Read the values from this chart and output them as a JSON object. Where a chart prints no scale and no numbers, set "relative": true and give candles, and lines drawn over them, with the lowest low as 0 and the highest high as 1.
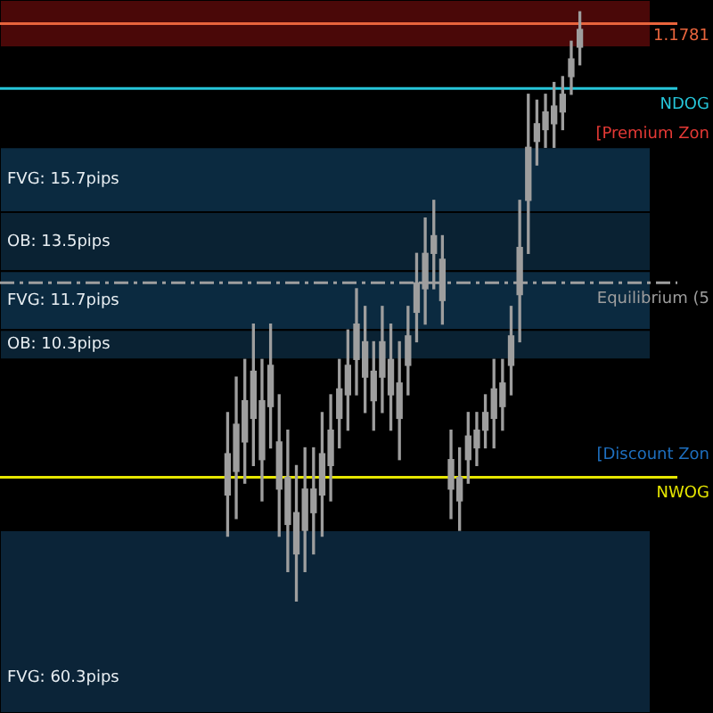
{
  "chart_data": {
    "type": "candlestick",
    "relative": true,
    "tick_labels": false,
    "legend": false,
    "categories": [
      null,
      null,
      null,
      null,
      null,
      null,
      null,
      null,
      null,
      null,
      null,
      null,
      null,
      null,
      null,
      null,
      null,
      null,
      null,
      null,
      null,
      null,
      null,
      null,
      null,
      null,
      null,
      null,
      null,
      null,
      null,
      null,
      null,
      null,
      null,
      null,
      null,
      null,
      null,
      null,
      null,
      null,
      null,
      null,
      null,
      null,
      null,
      null,
      null,
      null,
      null,
      null,
      null,
      null,
      null,
      null,
      null,
      null,
      null,
      null,
      null,
      null,
      null,
      null,
      null,
      null,
      null,
      null,
      null,
      null,
      null,
      null,
      null,
      null,
      null,
      null,
      null,
      null,
      null,
      null,
      null,
      null,
      null
    ],
    "series": [
      {
        "color": "#9e9e9e",
        "ohlc": [
          null,
          null,
          null,
          null,
          null,
          null,
          null,
          null,
          null,
          null,
          null,
          null,
          null,
          null,
          null,
          null,
          null,
          null,
          null,
          null,
          null,
          null,
          null,
          null,
          null,
          null,
          [
            0.18,
            0.32,
            0.11,
            0.25
          ],
          [
            0.22,
            0.38,
            0.14,
            0.3
          ],
          [
            0.27,
            0.41,
            0.2,
            0.34
          ],
          [
            0.31,
            0.47,
            0.23,
            0.39
          ],
          [
            0.24,
            0.41,
            0.17,
            0.34
          ],
          [
            0.33,
            0.47,
            0.26,
            0.4
          ],
          [
            0.19,
            0.35,
            0.11,
            0.27
          ],
          [
            0.13,
            0.29,
            0.05,
            0.21
          ],
          [
            0.08,
            0.23,
            0.0,
            0.15
          ],
          [
            0.12,
            0.26,
            0.05,
            0.19
          ],
          [
            0.15,
            0.26,
            0.08,
            0.19
          ],
          [
            0.18,
            0.32,
            0.11,
            0.25
          ],
          [
            0.23,
            0.35,
            0.17,
            0.29
          ],
          [
            0.31,
            0.41,
            0.26,
            0.36
          ],
          [
            0.35,
            0.46,
            0.29,
            0.4
          ],
          [
            0.41,
            0.53,
            0.35,
            0.47
          ],
          [
            0.38,
            0.5,
            0.32,
            0.44
          ],
          [
            0.34,
            0.44,
            0.29,
            0.39
          ],
          [
            0.38,
            0.5,
            0.32,
            0.44
          ],
          [
            0.35,
            0.47,
            0.29,
            0.41
          ],
          [
            0.31,
            0.44,
            0.24,
            0.37
          ],
          [
            0.4,
            0.5,
            0.35,
            0.45
          ],
          [
            0.49,
            0.59,
            0.44,
            0.54
          ],
          [
            0.53,
            0.65,
            0.47,
            0.59
          ],
          [
            0.59,
            0.68,
            0.53,
            0.62
          ],
          [
            0.51,
            0.62,
            0.47,
            0.58
          ],
          [
            0.19,
            0.29,
            0.14,
            0.24
          ],
          [
            0.17,
            0.26,
            0.12,
            0.21
          ],
          [
            0.24,
            0.32,
            0.2,
            0.28
          ],
          [
            0.26,
            0.32,
            0.23,
            0.29
          ],
          [
            0.29,
            0.35,
            0.26,
            0.32
          ],
          [
            0.31,
            0.41,
            0.26,
            0.36
          ],
          [
            0.33,
            0.41,
            0.29,
            0.37
          ],
          [
            0.4,
            0.5,
            0.35,
            0.45
          ],
          [
            0.52,
            0.68,
            0.44,
            0.6
          ],
          [
            0.68,
            0.86,
            0.59,
            0.77
          ],
          [
            0.78,
            0.85,
            0.74,
            0.81
          ],
          [
            0.8,
            0.86,
            0.77,
            0.83
          ],
          [
            0.81,
            0.88,
            0.77,
            0.84
          ],
          [
            0.83,
            0.89,
            0.8,
            0.86
          ],
          [
            0.89,
            0.95,
            0.86,
            0.92
          ],
          [
            0.94,
            1.0,
            0.91,
            0.97
          ],
          null,
          null,
          null,
          null,
          null,
          null,
          null,
          null,
          null,
          null,
          null,
          null,
          null,
          null,
          null
        ]
      }
    ],
    "bands": [
      {
        "axis": "y",
        "from": 0.94,
        "to": 1.02,
        "color": "#4a0808"
      },
      {
        "axis": "y",
        "from": 0.66,
        "to": 0.77,
        "label": "FVG: 15.7pips",
        "color": "#0b2a40"
      },
      {
        "axis": "y",
        "from": 0.56,
        "to": 0.66,
        "label": "OB: 13.5pips",
        "color": "#0a2233"
      },
      {
        "axis": "y",
        "from": 0.46,
        "to": 0.56,
        "label": "FVG: 11.7pips",
        "color": "#0b2a40"
      },
      {
        "axis": "y",
        "from": 0.41,
        "to": 0.46,
        "label": "OB: 10.3pips",
        "color": "#0a2233"
      },
      {
        "axis": "y",
        "from": -0.19,
        "to": 0.12,
        "label": "FVG: 60.3pips",
        "color": "#0b2438"
      }
    ],
    "ref_lines": [
      {
        "axis": "y",
        "value": 0.98,
        "color": "#e8643c"
      },
      {
        "axis": "y",
        "value": 0.87,
        "label": "NDOG",
        "color": "#26c6da"
      },
      {
        "axis": "y",
        "value": 0.54,
        "label": "Equilibrium (5",
        "color": "#9e9e9e",
        "line_style": "dashdot"
      },
      {
        "axis": "y",
        "value": 0.21,
        "label": "NWOG",
        "color": "#e6e600"
      }
    ],
    "annotations": [
      "[Premium Zon",
      "[Discount Zon",
      "1.1781"
    ]
  }
}
